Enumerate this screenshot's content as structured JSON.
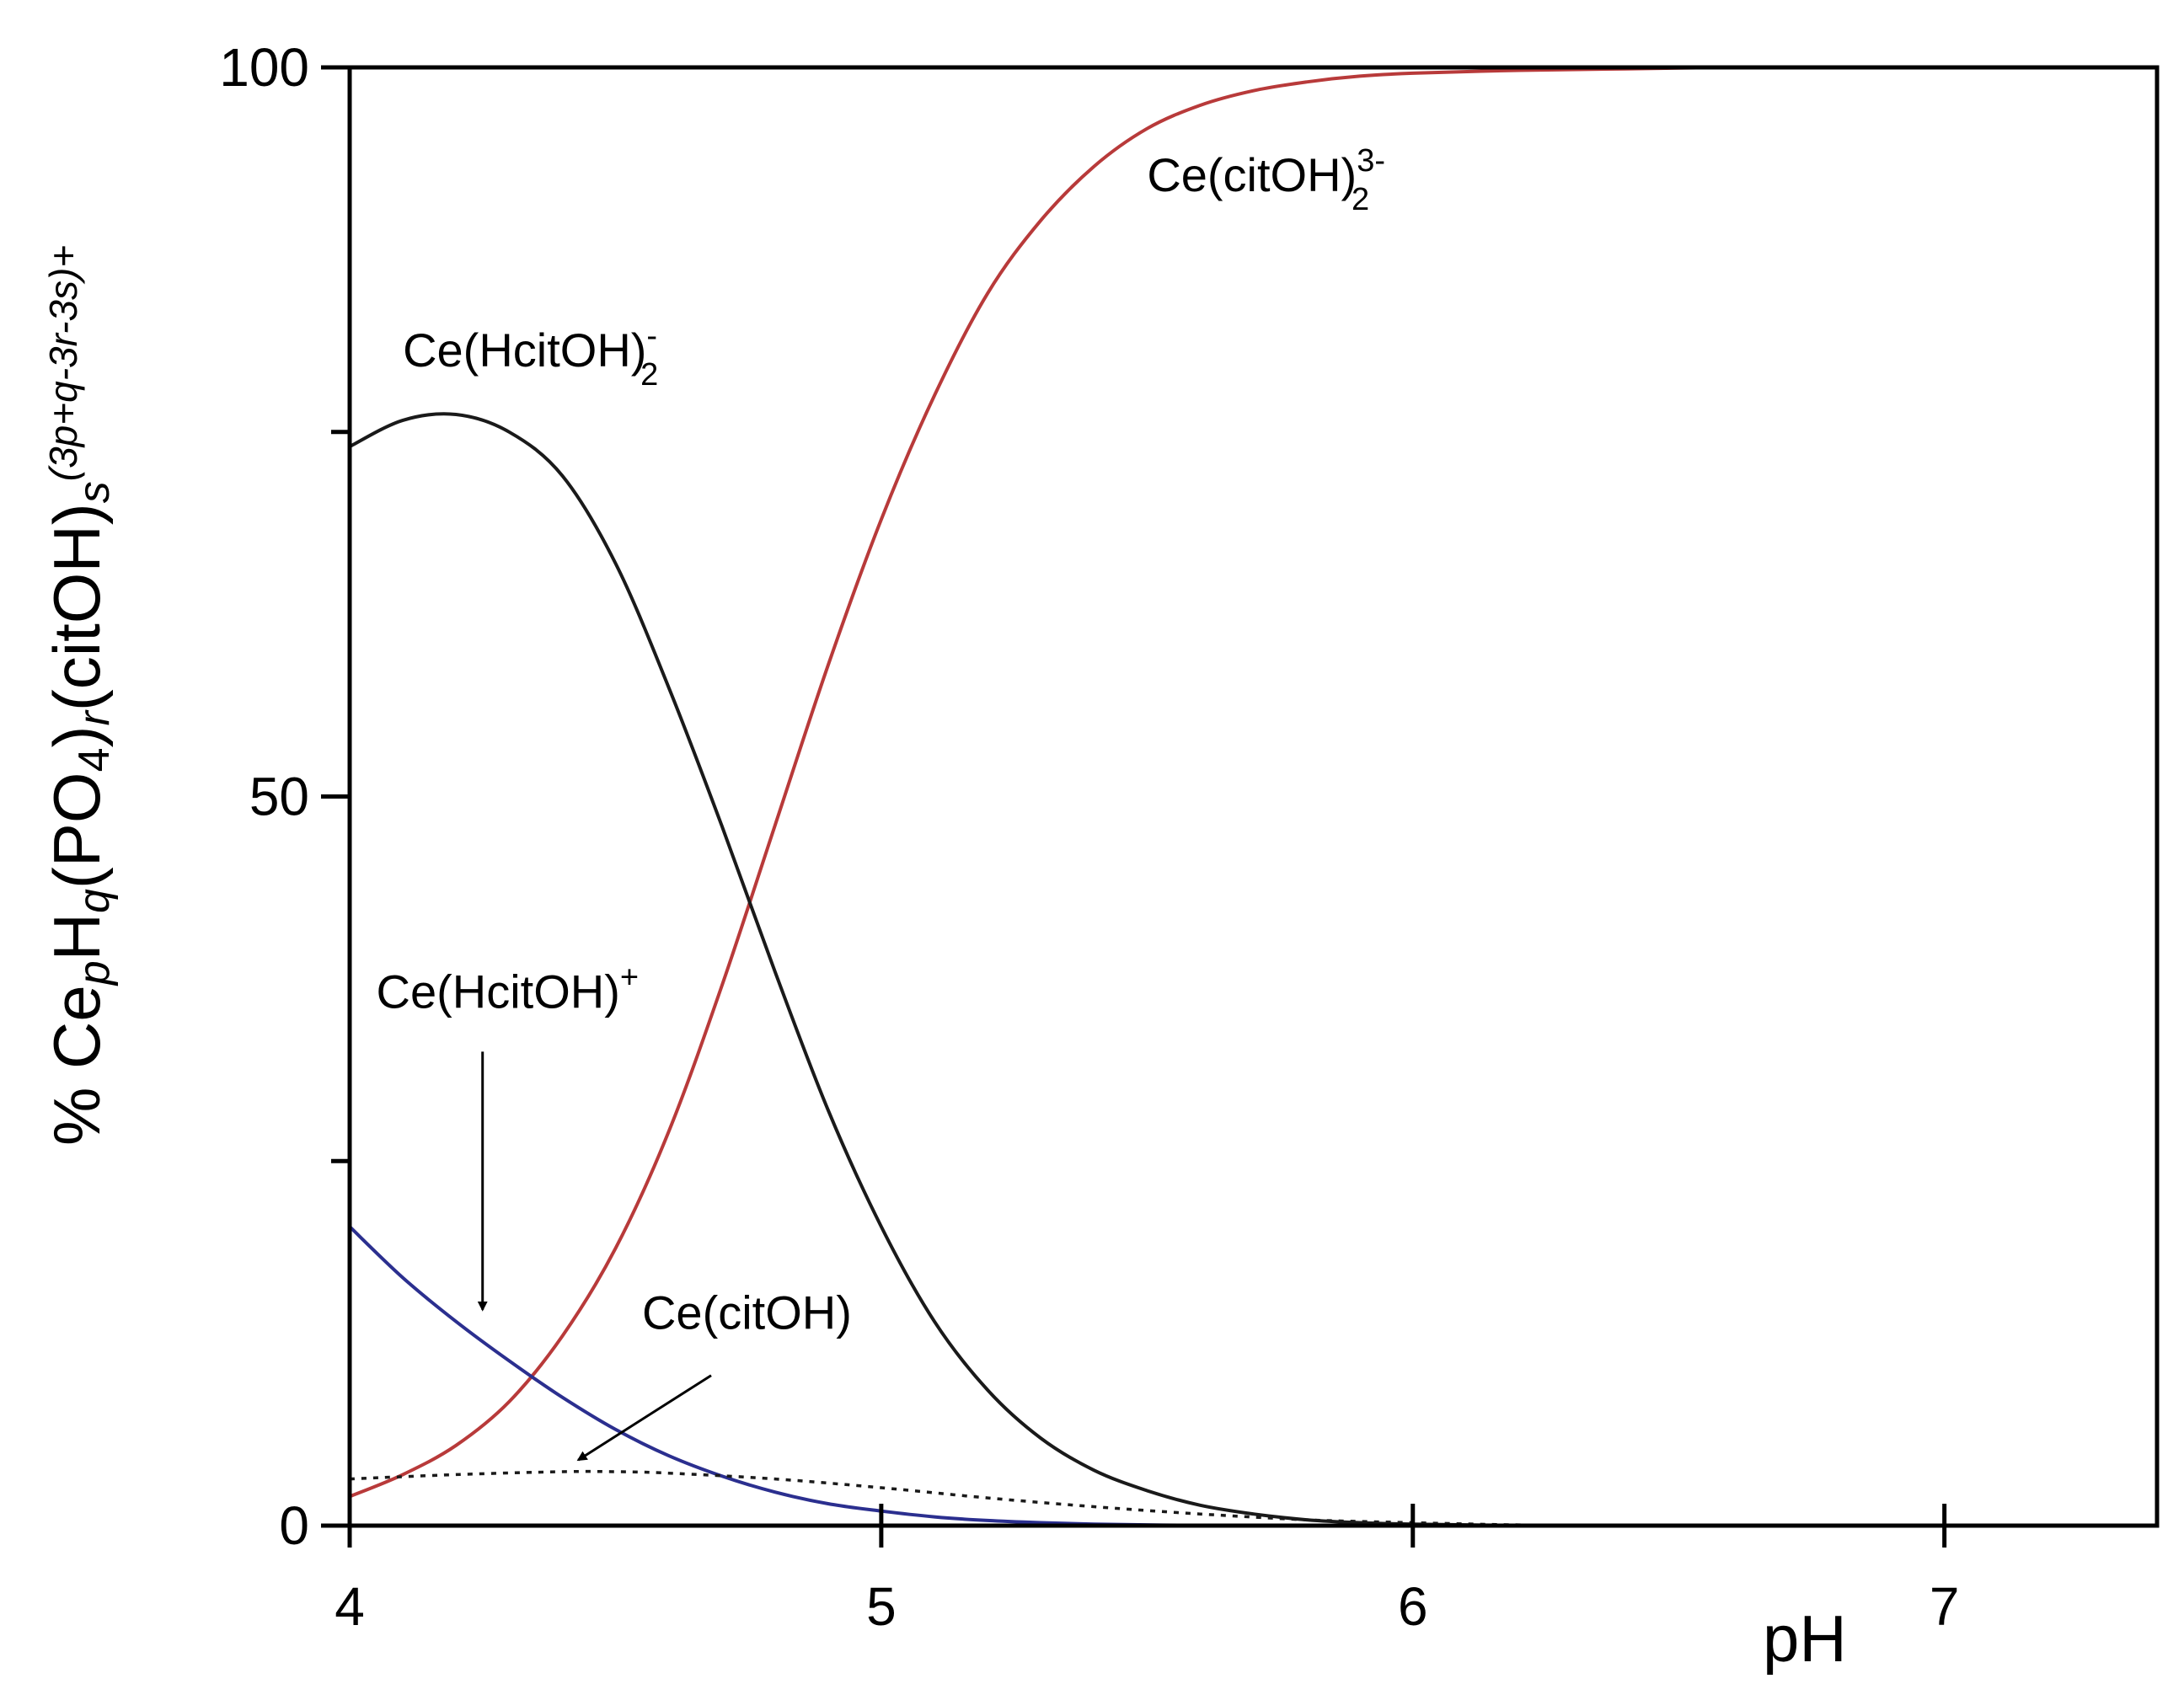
{
  "chart_data": {
    "type": "line",
    "title": "",
    "xlabel": "pH",
    "ylabel": {
      "parts": [
        "% Ce",
        "p",
        "H",
        "q",
        "(PO",
        "4",
        ")",
        "r",
        "(citOH)",
        "s",
        "(3p+q-3r-3s)+"
      ]
    },
    "xlim": [
      4,
      7.4
    ],
    "ylim": [
      0,
      100
    ],
    "x_ticks": [
      "4",
      "5",
      "6",
      "7"
    ],
    "y_ticks": [
      "0",
      "50",
      "100"
    ],
    "y_minor_ticks": [
      25,
      75
    ],
    "grid": false,
    "legend": "none",
    "series": [
      {
        "key": "ce_citoh2",
        "color": "#b83a3a",
        "dash": "solid",
        "x": [
          4.0,
          4.1,
          4.2,
          4.3,
          4.4,
          4.5,
          4.6,
          4.7,
          4.8,
          4.9,
          5.0,
          5.1,
          5.2,
          5.3,
          5.4,
          5.5,
          5.6,
          5.7,
          5.8,
          5.9,
          6.0,
          6.2,
          6.4,
          6.6,
          6.8,
          7.0,
          7.2,
          7.4
        ],
        "y": [
          2.0,
          3.5,
          5.5,
          8.5,
          13.0,
          19.0,
          27.0,
          37.0,
          48.0,
          59.0,
          69.0,
          77.5,
          84.5,
          89.5,
          93.2,
          95.8,
          97.4,
          98.4,
          99.0,
          99.4,
          99.6,
          99.8,
          99.9,
          100,
          100,
          100,
          100,
          100
        ]
      },
      {
        "key": "ce_hcitoh2",
        "color": "#1a1a1a",
        "dash": "solid",
        "x": [
          4.0,
          4.1,
          4.2,
          4.3,
          4.4,
          4.5,
          4.6,
          4.7,
          4.8,
          4.9,
          5.0,
          5.1,
          5.2,
          5.3,
          5.4,
          5.5,
          5.6,
          5.7,
          5.8,
          5.9,
          6.0,
          6.2,
          6.4,
          6.6,
          6.8,
          7.0,
          7.2,
          7.4
        ],
        "y": [
          74.0,
          75.8,
          76.2,
          75.0,
          72.0,
          66.0,
          57.5,
          48.0,
          38.0,
          28.5,
          20.5,
          14.0,
          9.3,
          6.0,
          3.8,
          2.4,
          1.4,
          0.8,
          0.4,
          0.2,
          0.1,
          0.02,
          0,
          0,
          0,
          0,
          0,
          0
        ]
      },
      {
        "key": "ce_hcitoh",
        "color": "#2b2f8f",
        "dash": "solid",
        "x": [
          4.0,
          4.1,
          4.2,
          4.3,
          4.4,
          4.5,
          4.6,
          4.7,
          4.8,
          4.9,
          5.0,
          5.1,
          5.2,
          5.3,
          5.4,
          5.5,
          5.6,
          5.8,
          6.0,
          6.2,
          6.4,
          6.6,
          6.8,
          7.0,
          7.2,
          7.4
        ],
        "y": [
          20.5,
          17.0,
          14.0,
          11.3,
          8.8,
          6.6,
          4.8,
          3.4,
          2.3,
          1.5,
          1.0,
          0.6,
          0.35,
          0.2,
          0.1,
          0.05,
          0.02,
          0,
          0,
          0,
          0,
          0,
          0,
          0,
          0,
          0
        ]
      },
      {
        "key": "ce_citoh",
        "color": "#1a1a1a",
        "dash": "dotted",
        "x": [
          4.0,
          4.2,
          4.4,
          4.5,
          4.6,
          4.8,
          5.0,
          5.2,
          5.4,
          5.6,
          5.8,
          6.0,
          6.2,
          6.4,
          6.5
        ],
        "y": [
          3.2,
          3.5,
          3.7,
          3.7,
          3.6,
          3.2,
          2.6,
          1.9,
          1.3,
          0.8,
          0.4,
          0.2,
          0.05,
          0.01,
          0
        ]
      }
    ],
    "annotations": [
      {
        "key": "ce_citoh2",
        "text": "Ce(citOH)",
        "sub": "2",
        "sup": "3-",
        "x": 5.5,
        "y": 91.5
      },
      {
        "key": "ce_hcitoh2",
        "text": "Ce(HcitOH)",
        "sub": "2",
        "sup": "-",
        "x": 4.1,
        "y": 79.5
      },
      {
        "key": "ce_hcitoh",
        "text": "Ce(HcitOH)",
        "sub": "",
        "sup": "+",
        "x": 4.05,
        "y": 35.5,
        "arrow_from": [
          4.25,
          32.5
        ],
        "arrow_to": [
          4.25,
          14.8
        ]
      },
      {
        "key": "ce_citoh",
        "text": "Ce(citOH)",
        "sub": "",
        "sup": "",
        "x": 4.55,
        "y": 13.5,
        "arrow_from": [
          4.68,
          10.3
        ],
        "arrow_to": [
          4.43,
          4.5
        ]
      }
    ]
  }
}
